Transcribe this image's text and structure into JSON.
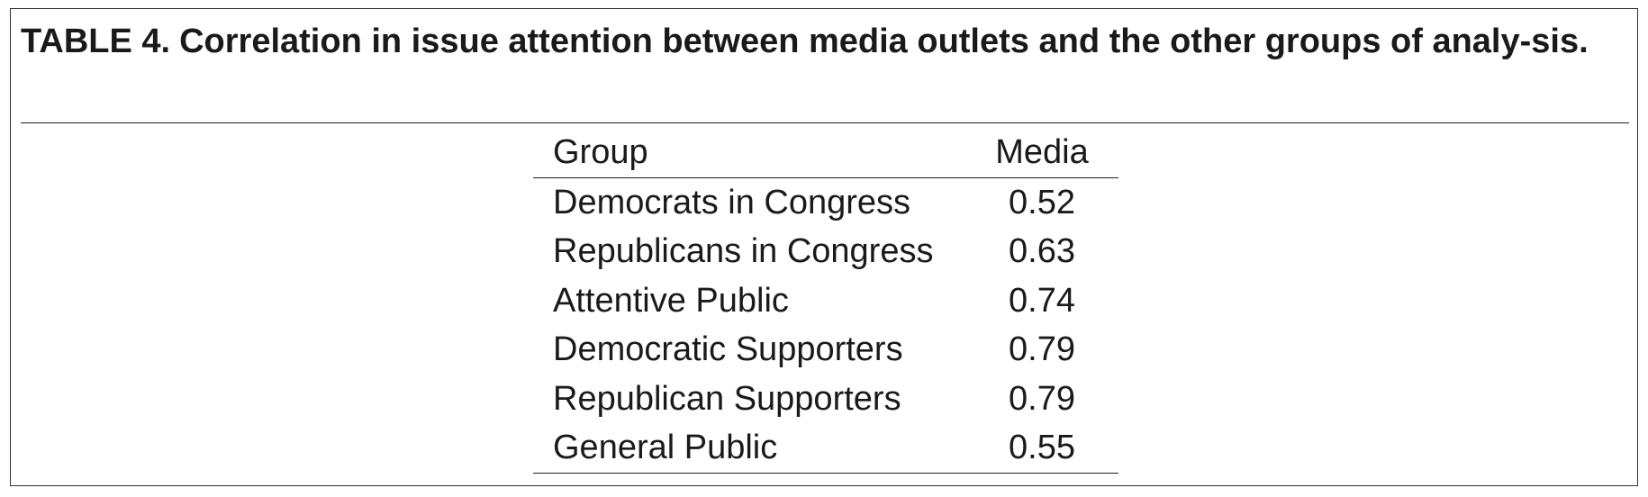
{
  "caption": {
    "label": "TABLE 4.",
    "text": "Correlation in issue attention between media outlets and the other groups of analy-sis."
  },
  "table": {
    "headers": {
      "group": "Group",
      "media": "Media"
    },
    "rows": [
      {
        "group": "Democrats in Congress",
        "media": "0.52"
      },
      {
        "group": "Republicans in Congress",
        "media": "0.63"
      },
      {
        "group": "Attentive Public",
        "media": "0.74"
      },
      {
        "group": "Democratic Supporters",
        "media": "0.79"
      },
      {
        "group": "Republican Supporters",
        "media": "0.79"
      },
      {
        "group": "General Public",
        "media": "0.55"
      }
    ]
  }
}
